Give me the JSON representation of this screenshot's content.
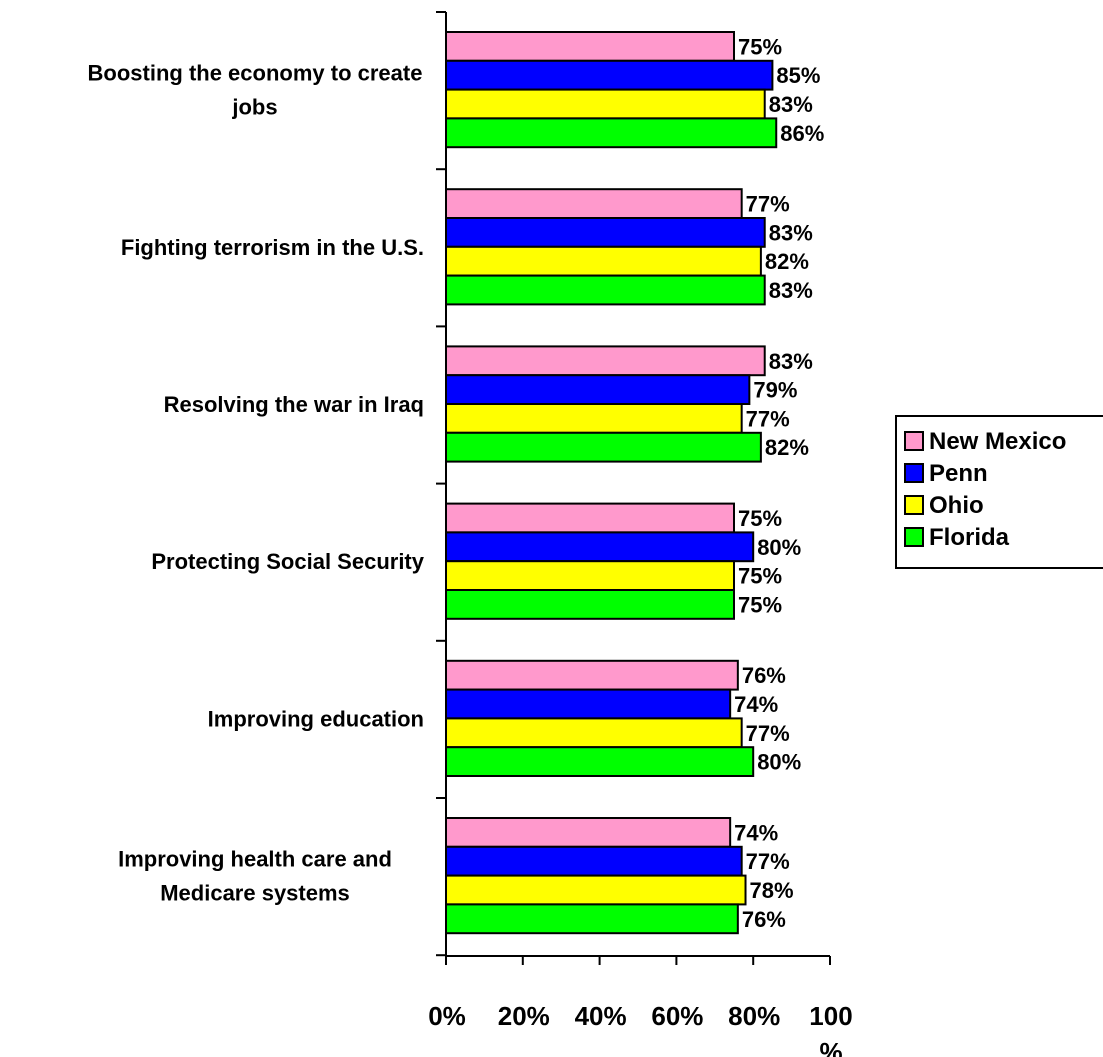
{
  "chart_data": {
    "type": "bar",
    "orientation": "horizontal",
    "categories": [
      [
        "Boosting the economy to create",
        "jobs"
      ],
      [
        "Fighting terrorism in the U.S."
      ],
      [
        "Resolving the war in Iraq"
      ],
      [
        "Protecting Social Security"
      ],
      [
        "Improving education"
      ],
      [
        "Improving health care and",
        "Medicare systems"
      ]
    ],
    "series": [
      {
        "name": "New Mexico",
        "color": "#ff99cc",
        "values": [
          75,
          77,
          83,
          75,
          76,
          74
        ],
        "labels": [
          "75%",
          "77%",
          "83%",
          "75%",
          "76%",
          "74%"
        ]
      },
      {
        "name": "Penn",
        "color": "#0000ff",
        "values": [
          85,
          83,
          79,
          80,
          74,
          77
        ],
        "labels": [
          "85%",
          "83%",
          "79%",
          "80%",
          "74%",
          "77%"
        ]
      },
      {
        "name": "Ohio",
        "color": "#ffff00",
        "values": [
          83,
          82,
          77,
          75,
          77,
          78
        ],
        "labels": [
          "83%",
          "82%",
          "77%",
          "75%",
          "77%",
          "78%"
        ]
      },
      {
        "name": "Florida",
        "color": "#00ff00",
        "values": [
          86,
          83,
          82,
          75,
          80,
          76
        ],
        "labels": [
          "86%",
          "83%",
          "82%",
          "75%",
          "80%",
          "76%"
        ]
      }
    ],
    "x_ticks": [
      {
        "value": 0,
        "lines": [
          "0%"
        ]
      },
      {
        "value": 20,
        "lines": [
          "20%"
        ]
      },
      {
        "value": 40,
        "lines": [
          "40%"
        ]
      },
      {
        "value": 60,
        "lines": [
          "60%"
        ]
      },
      {
        "value": 80,
        "lines": [
          "80%"
        ]
      },
      {
        "value": 100,
        "lines": [
          "100",
          "%"
        ]
      }
    ],
    "xlim": [
      0,
      100
    ],
    "title": "",
    "xlabel": "",
    "ylabel": "",
    "grid": false,
    "legend_position": "right"
  }
}
